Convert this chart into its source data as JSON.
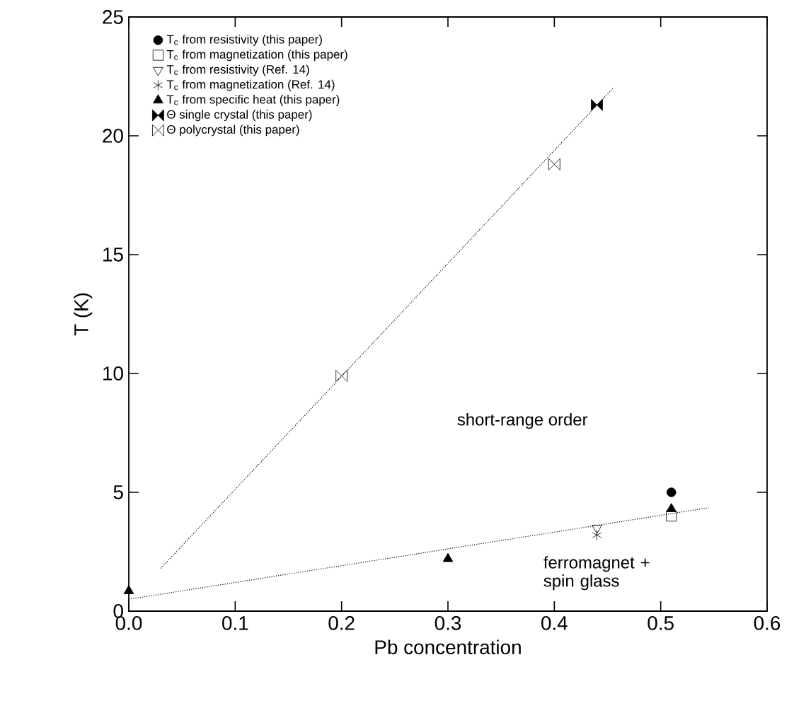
{
  "chart_data": {
    "type": "scatter",
    "xlabel": "Pb concentration",
    "ylabel": "T (K)",
    "xlim": [
      0.0,
      0.6
    ],
    "ylim": [
      0,
      25
    ],
    "xticks": [
      {
        "value": 0.0,
        "label": "0.0"
      },
      {
        "value": 0.1,
        "label": "0.1"
      },
      {
        "value": 0.2,
        "label": "0.2"
      },
      {
        "value": 0.3,
        "label": "0.3"
      },
      {
        "value": 0.4,
        "label": "0.4"
      },
      {
        "value": 0.5,
        "label": "0.5"
      },
      {
        "value": 0.6,
        "label": "0.6"
      }
    ],
    "yticks": [
      0,
      5,
      10,
      15,
      20,
      25
    ],
    "grid": false,
    "legend": "top left",
    "annotations": [
      "short-range order",
      "ferromagnet + spin glass"
    ],
    "series": [
      {
        "name": "T$_{c}$ from resistivity (this paper)",
        "color": "#000000",
        "marker": "circle",
        "x": [
          0.51
        ],
        "values": [
          5.0
        ]
      },
      {
        "name": "T$_{c}$ from magnetization (this paper)",
        "color": "#000000",
        "marker": "square",
        "x": [
          0.51
        ],
        "values": [
          4.0
        ]
      },
      {
        "name": "T$_{c}$ from resistivity (Ref. 14)",
        "color": "#000000",
        "marker": "triangle-down",
        "x": [
          0.44
        ],
        "values": [
          3.5
        ]
      },
      {
        "name": "T$_{c}$ from magnetization (Ref. 14)",
        "color": "#000000",
        "marker": "cross",
        "x": [
          0.44
        ],
        "values": [
          3.2
        ]
      },
      {
        "name": "T$_{c}$ from specific heat (this paper)",
        "color": "#000000",
        "marker": "triangle",
        "x": [
          0.0,
          0.3,
          0.51
        ],
        "values": [
          0.85,
          2.2,
          4.3
        ]
      },
      {
        "name": "Θ single crystal (this paper)",
        "color": "#000000",
        "marker": "diamond",
        "x": [
          0.44
        ],
        "values": [
          21.3
        ]
      },
      {
        "name": "Θ polycrystal (this paper)",
        "color": "#000000",
        "x": [
          0.2,
          0.4
        ],
        "values": [
          9.9,
          18.8
        ]
      },
      {
        "type": "line",
        "color": "#000000",
        "line_style": "dotted",
        "marker": "none",
        "x": [
          0.03,
          0.455
        ],
        "values": [
          1.8,
          22.0
        ]
      },
      {
        "type": "line",
        "color": "#000000",
        "line_style": "dotted",
        "marker": "none",
        "x": [
          0.0,
          0.545
        ],
        "values": [
          0.5,
          4.35
        ]
      }
    ]
  }
}
